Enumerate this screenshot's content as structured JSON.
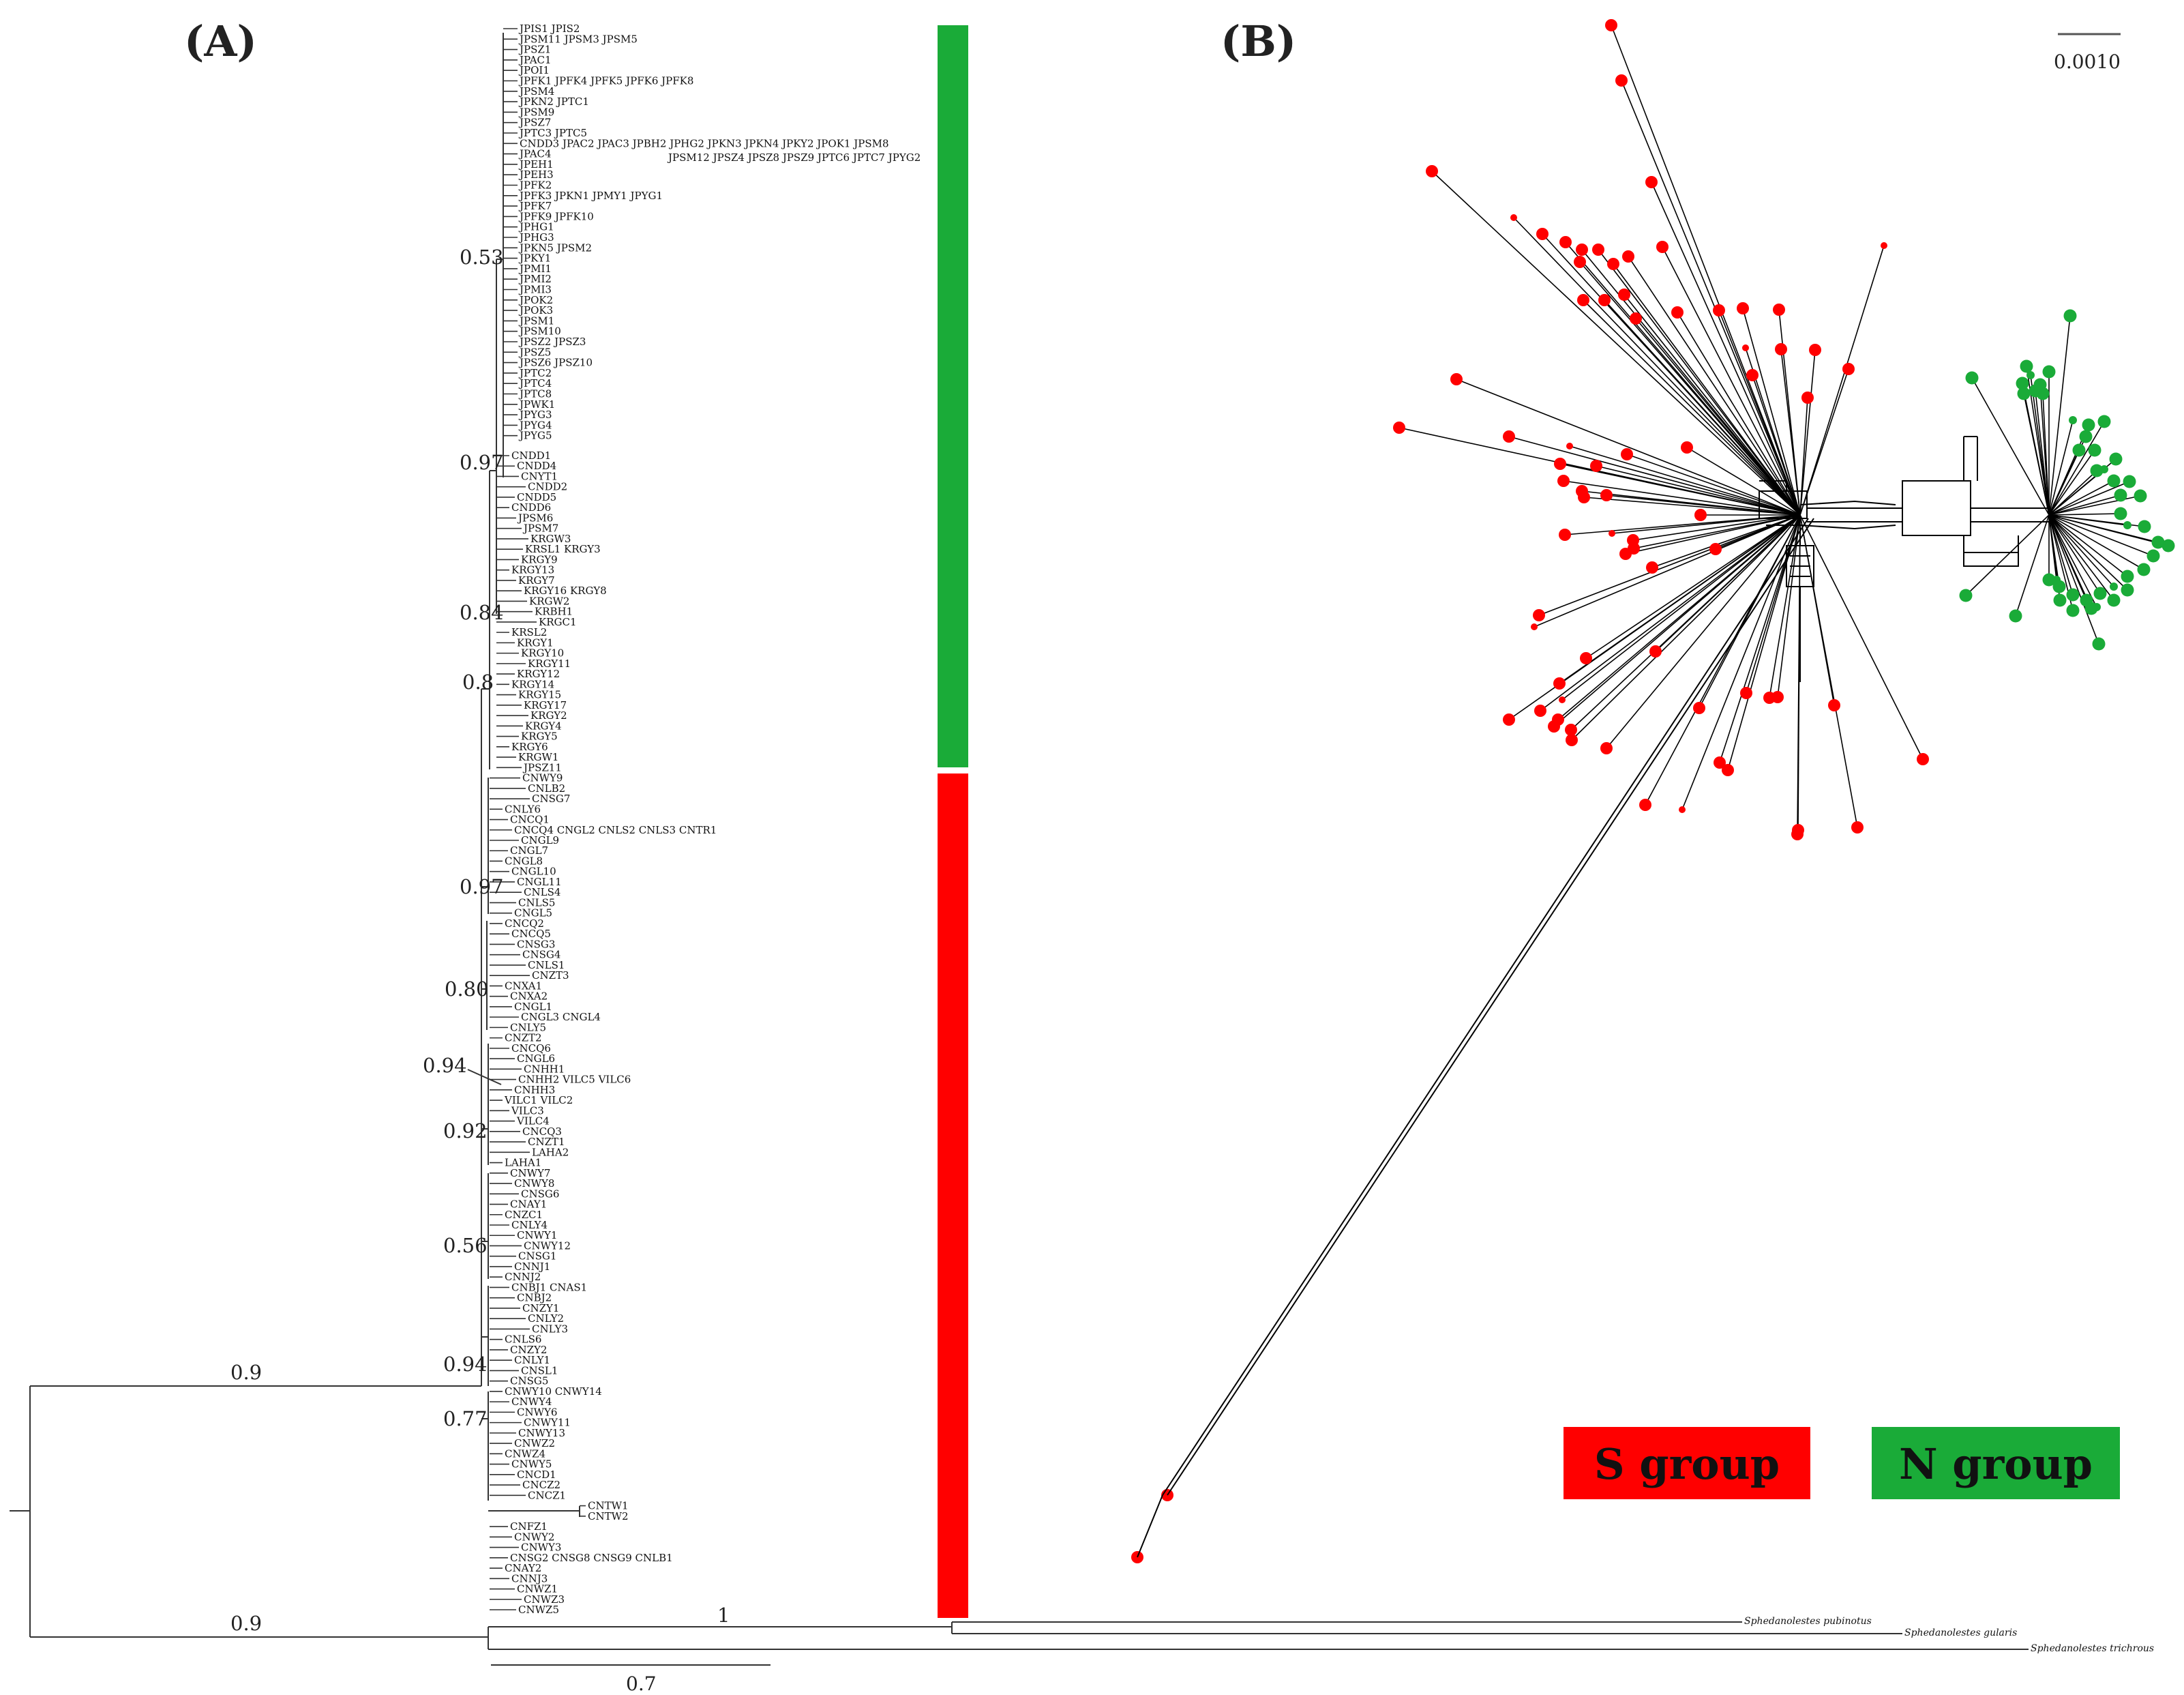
{
  "panel_a": {
    "label": "(A)",
    "top_tips": [
      "JPIS1 JPIS2",
      "JPSM11 JPSM3 JPSM5",
      "JPSZ1",
      "JPAC1",
      "JPOI1",
      "JPFK1 JPFK4 JPFK5 JPFK6 JPFK8",
      "JPSM4",
      "JPKN2 JPTC1",
      "JPSM9",
      "JPSZ7",
      "JPTC3 JPTC5",
      "CNDD3 JPAC2 JPAC3 JPBH2 JPHG2 JPKN3 JPKN4 JPKY2 JPOK1 JPSM8",
      "JPAC4",
      "JPEH1",
      "JPEH3",
      "JPFK2",
      "JPFK3 JPKN1 JPMY1 JPYG1",
      "JPFK7",
      "JPFK9 JPFK10",
      "JPHG1",
      "JPHG3",
      "JPKN5 JPSM2",
      "JPKY1",
      "JPMI1",
      "JPMI2",
      "JPMI3",
      "JPOK2",
      "JPOK3",
      "JPSM1",
      "JPSM10",
      "JPSZ2 JPSZ3",
      "JPSZ5",
      "JPSZ6 JPSZ10",
      "JPTC2",
      "JPTC4",
      "JPTC8",
      "JPWK1",
      "JPYG3",
      "JPYG4",
      "JPYG5"
    ],
    "wrap_line": "JPSM12 JPSZ4 JPSZ8 JPSZ9 JPTC6 JPTC7 JPYG2",
    "bottom_tips": [
      "CNDD1",
      "CNDD4",
      "CNYT1",
      "CNDD2",
      "CNDD5",
      "CNDD6",
      "JPSM6",
      "JPSM7",
      "KRGW3",
      "KRSL1 KRGY3",
      "KRGY9",
      "KRGY13",
      "KRGY7",
      "KRGY16 KRGY8",
      "KRGW2",
      "KRBH1",
      "KRGC1",
      "KRSL2",
      "KRGY1",
      "KRGY10",
      "KRGY11",
      "KRGY12",
      "KRGY14",
      "KRGY15",
      "KRGY17",
      "KRGY2",
      "KRGY4",
      "KRGY5",
      "KRGY6",
      "KRGW1",
      "JPSZ11",
      "CNWY9",
      "CNLB2",
      "CNSG7",
      "CNLY6",
      "CNCQ1",
      "CNCQ4 CNGL2 CNLS2 CNLS3 CNTR1",
      "CNGL9",
      "CNGL7",
      "CNGL8",
      "CNGL10",
      "CNGL11",
      "CNLS4",
      "CNLS5",
      "CNGL5",
      "CNCQ2",
      "CNCQ5",
      "CNSG3",
      "CNSG4",
      "CNLS1",
      "CNZT3",
      "CNXA1",
      "CNXA2",
      "CNGL1",
      "CNGL3 CNGL4",
      "CNLY5",
      "CNZT2",
      "CNCQ6",
      "CNGL6",
      "CNHH1",
      "CNHH2 VILC5 VILC6",
      "CNHH3",
      "VILC1 VILC2",
      "VILC3",
      "VILC4",
      "CNCQ3",
      "CNZT1",
      "LAHA2",
      "LAHA1",
      "CNWY7",
      "CNWY8",
      "CNSG6",
      "CNAY1",
      "CNZC1",
      "CNLY4",
      "CNWY1",
      "CNWY12",
      "CNSG1",
      "CNNJ1",
      "CNNJ2",
      "CNBJ1 CNAS1",
      "CNBJ2",
      "CNZY1",
      "CNLY2",
      "CNLY3",
      "CNLS6",
      "CNZY2",
      "CNLY1",
      "CNSL1",
      "CNSG5",
      "CNWY10 CNWY14",
      "CNWY4",
      "CNWY6",
      "CNWY11",
      "CNWY13",
      "CNWZ2",
      "CNWZ4",
      "CNWY5",
      "CNCD1",
      "CNCZ2",
      "CNCZ1",
      "CNTW1",
      "CNTW2",
      "CNFZ1",
      "CNWY2",
      "CNWY3",
      "CNSG2 CNSG8 CNSG9 CNLB1",
      "CNAY2",
      "CNNJ3",
      "CNWZ1",
      "CNWZ3",
      "CNWZ5"
    ],
    "support_values": [
      "0.53",
      "0.97",
      "0.84",
      "0.8",
      "0.97",
      "0.80",
      "0.94",
      "0.92",
      "0.56",
      "0.94",
      "0.77"
    ],
    "root_support_top": "0.9",
    "root_support_bottom": "0.9",
    "outgroup_support": "1",
    "outgroups": [
      "Sphedanolestes pubinotus",
      "Sphedanolestes gularis",
      "Sphedanolestes trichrous"
    ],
    "scale_label": "0.7"
  },
  "panel_b": {
    "label": "(B)",
    "scale_label": "0.0010"
  },
  "legend": {
    "s_group": "S group",
    "n_group": "N group"
  },
  "colors": {
    "s_group": "#ff0000",
    "n_group": "#1aab38",
    "line": "#000000"
  }
}
